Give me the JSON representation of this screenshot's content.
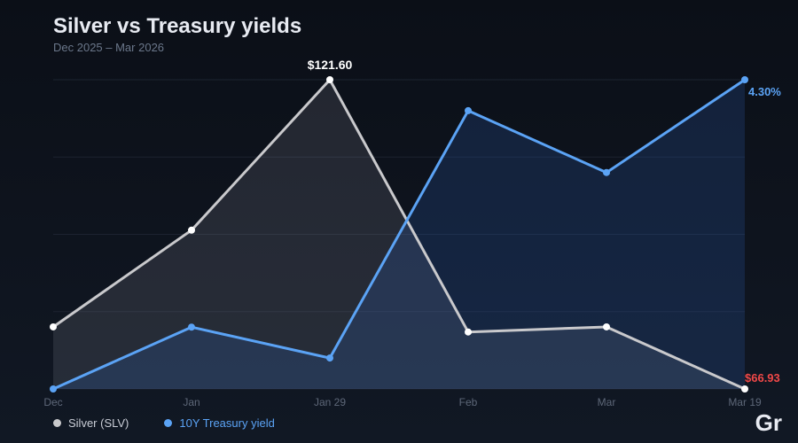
{
  "title": "Silver vs Treasury yields",
  "subtitle": "Dec 2025 – Mar 2026",
  "logo": "Gr",
  "chart_data": {
    "type": "area",
    "categories": [
      "Dec",
      "Jan",
      "Jan 29",
      "Feb",
      "Mar",
      "Mar 19"
    ],
    "series": [
      {
        "name": "Silver (SLV)",
        "color": "#c9c9cc",
        "values": [
          77.9,
          95.0,
          121.6,
          77.0,
          77.9,
          66.93
        ],
        "ylim": [
          66.93,
          121.6
        ],
        "annotations": {
          "max": "$121.60",
          "last": "$66.93"
        },
        "last_label_color": "#f04848"
      },
      {
        "name": "10Y Treasury yield",
        "color": "#5ba3f5",
        "values": [
          4.0,
          4.06,
          4.03,
          4.27,
          4.21,
          4.3
        ],
        "ylim": [
          4.0,
          4.3
        ],
        "annotations": {
          "last": "4.30%"
        },
        "last_label_color": "#5ba3f5"
      }
    ],
    "grid": true,
    "legend": "bottom-left"
  }
}
